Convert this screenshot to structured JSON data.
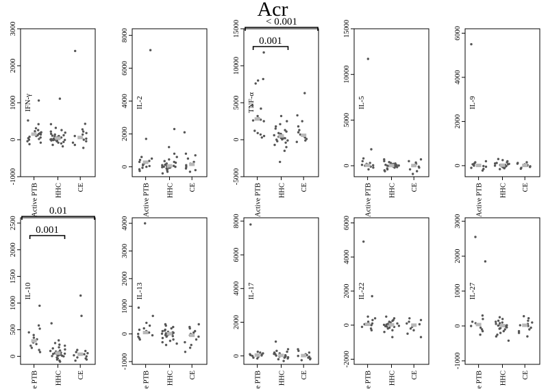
{
  "title": "Acr",
  "group_labels": [
    "Active PTB",
    "HHC",
    "CE"
  ],
  "colors": {
    "points": "#555555",
    "median": "#b8b8b8",
    "axis": "#000000"
  },
  "chart_data": [
    {
      "type": "scatter",
      "ylabel": "IFN-γ",
      "ylim": [
        -1000,
        3000
      ],
      "yticks": [
        -1000,
        0,
        1000,
        2000,
        3000
      ],
      "categories": [
        "Active PTB",
        "HHC",
        "CE"
      ],
      "series": [
        {
          "name": "Active PTB",
          "values": [
            1060,
            520,
            420,
            310,
            260,
            230,
            200,
            180,
            160,
            140,
            120,
            100,
            80,
            60,
            40,
            20,
            0,
            -40,
            -80,
            -120
          ],
          "median": 150
        },
        {
          "name": "HHC",
          "values": [
            1110,
            420,
            320,
            260,
            220,
            190,
            160,
            140,
            120,
            110,
            100,
            90,
            80,
            70,
            60,
            50,
            40,
            30,
            20,
            15,
            10,
            5,
            0,
            -5,
            -10,
            -20,
            -30,
            -40,
            -60,
            -80,
            -100,
            -140,
            -180
          ],
          "median": 40
        },
        {
          "name": "CE",
          "values": [
            2400,
            430,
            280,
            220,
            180,
            140,
            100,
            60,
            30,
            0,
            -40,
            -80,
            -140,
            -220
          ],
          "median": 60
        }
      ]
    },
    {
      "type": "scatter",
      "ylabel": "IL-2",
      "ylim": [
        -600,
        8400
      ],
      "yticks": [
        0,
        2000,
        4000,
        6000,
        8000
      ],
      "categories": [
        "Active PTB",
        "HHC",
        "CE"
      ],
      "series": [
        {
          "name": "Active PTB",
          "values": [
            7100,
            1700,
            600,
            500,
            420,
            360,
            300,
            250,
            200,
            150,
            100,
            50,
            0,
            -60,
            -150,
            -250
          ],
          "median": 280
        },
        {
          "name": "HHC",
          "values": [
            2300,
            1200,
            800,
            600,
            450,
            350,
            300,
            250,
            200,
            160,
            130,
            100,
            80,
            60,
            40,
            20,
            10,
            0,
            -20,
            -40,
            -60,
            -100,
            -150,
            -200,
            -300,
            -400
          ],
          "median": 60
        },
        {
          "name": "CE",
          "values": [
            2100,
            800,
            700,
            500,
            300,
            200,
            100,
            0,
            -100,
            -200,
            -300
          ],
          "median": 150
        }
      ]
    },
    {
      "type": "scatter",
      "ylabel": "TNF-α",
      "ylim": [
        -5000,
        15000
      ],
      "yticks": [
        -5000,
        0,
        5000,
        10000,
        15000
      ],
      "categories": [
        "Active PTB",
        "HHC",
        "CE"
      ],
      "series": [
        {
          "name": "Active PTB",
          "values": [
            11800,
            8200,
            8000,
            7600,
            4600,
            4200,
            3200,
            2900,
            2700,
            2600,
            2500,
            1200,
            900,
            700,
            500,
            300
          ],
          "median": 2800
        },
        {
          "name": "HHC",
          "values": [
            3200,
            2500,
            2100,
            1800,
            1500,
            1300,
            1100,
            900,
            800,
            700,
            600,
            500,
            400,
            300,
            250,
            200,
            150,
            100,
            50,
            0,
            -100,
            -200,
            -400,
            -700,
            -1000,
            -1500,
            -3000
          ],
          "median": 500
        },
        {
          "name": "CE",
          "values": [
            6300,
            3300,
            2500,
            1800,
            1300,
            1000,
            700,
            500,
            300,
            100,
            -100,
            -300
          ],
          "median": 600
        }
      ],
      "annotations": [
        {
          "text": "< 0.001",
          "from": "Active PTB",
          "to": "CE"
        },
        {
          "text": "0.001",
          "from": "Active PTB",
          "to": "HHC"
        }
      ]
    },
    {
      "type": "scatter",
      "ylabel": "IL-5",
      "ylim": [
        -1200,
        15000
      ],
      "yticks": [
        0,
        5000,
        10000,
        15000
      ],
      "categories": [
        "Active PTB",
        "HHC",
        "CE"
      ],
      "series": [
        {
          "name": "Active PTB",
          "values": [
            11700,
            1800,
            800,
            500,
            300,
            200,
            100,
            50,
            0,
            -100,
            -200,
            -400
          ],
          "median": 50
        },
        {
          "name": "HHC",
          "values": [
            700,
            500,
            400,
            300,
            250,
            200,
            150,
            100,
            80,
            50,
            20,
            0,
            -30,
            -60,
            -100,
            -150,
            -200,
            -300,
            -400,
            -500,
            -600
          ],
          "median": 20
        },
        {
          "name": "CE",
          "values": [
            700,
            500,
            350,
            200,
            100,
            0,
            -100,
            -200,
            -400,
            -600,
            -900
          ],
          "median": 20
        }
      ]
    },
    {
      "type": "scatter",
      "ylabel": "IL-9",
      "ylim": [
        -500,
        6200
      ],
      "yticks": [
        0,
        2000,
        4000,
        6000
      ],
      "categories": [
        "Active PTB",
        "HHC",
        "CE"
      ],
      "series": [
        {
          "name": "Active PTB",
          "values": [
            5500,
            200,
            150,
            100,
            60,
            30,
            0,
            -20,
            -50,
            -100,
            -150,
            -220
          ],
          "median": 10
        },
        {
          "name": "HHC",
          "values": [
            300,
            250,
            200,
            150,
            120,
            100,
            80,
            60,
            40,
            30,
            20,
            10,
            0,
            -10,
            -20,
            -40,
            -60,
            -80,
            -120,
            -160
          ],
          "median": 20
        },
        {
          "name": "CE",
          "values": [
            150,
            120,
            90,
            60,
            30,
            0,
            -30,
            -60,
            -100,
            -140
          ],
          "median": 10
        }
      ]
    },
    {
      "type": "scatter",
      "ylabel": "IL-10",
      "ylim": [
        -150,
        2600
      ],
      "yticks": [
        0,
        500,
        1000,
        1500,
        2000,
        2500
      ],
      "categories": [
        "Active PTB",
        "HHC",
        "CE"
      ],
      "series": [
        {
          "name": "Active PTB",
          "values": [
            950,
            580,
            520,
            450,
            400,
            350,
            320,
            290,
            260,
            230,
            200,
            160,
            120,
            80
          ],
          "median": 290
        },
        {
          "name": "HHC",
          "values": [
            620,
            300,
            250,
            220,
            200,
            170,
            150,
            130,
            110,
            100,
            90,
            80,
            70,
            60,
            50,
            45,
            40,
            35,
            30,
            25,
            20,
            15,
            10,
            5,
            0,
            -20,
            -40,
            -60,
            -80,
            -100
          ],
          "median": 60
        },
        {
          "name": "CE",
          "values": [
            1140,
            760,
            120,
            100,
            80,
            60,
            40,
            20,
            0,
            -20,
            -40,
            -60,
            -80
          ],
          "median": 40
        }
      ],
      "annotations": [
        {
          "text": "0.01",
          "from": "Active PTB",
          "to": "CE"
        },
        {
          "text": "0.001",
          "from": "Active PTB",
          "to": "HHC"
        }
      ]
    },
    {
      "type": "scatter",
      "ylabel": "IL-13",
      "ylim": [
        -1100,
        4200
      ],
      "yticks": [
        -1000,
        0,
        1000,
        2000,
        3000,
        4000
      ],
      "categories": [
        "Active PTB",
        "HHC",
        "CE"
      ],
      "series": [
        {
          "name": "Active PTB",
          "values": [
            4000,
            950,
            650,
            400,
            300,
            200,
            150,
            100,
            50,
            0,
            -50,
            -100,
            -150,
            -200
          ],
          "median": 50
        },
        {
          "name": "HHC",
          "values": [
            350,
            300,
            250,
            200,
            150,
            120,
            100,
            80,
            60,
            40,
            20,
            10,
            0,
            -10,
            -20,
            -40,
            -60,
            -80,
            -100,
            -150,
            -200,
            -250,
            -300,
            -350,
            -400
          ],
          "median": 10
        },
        {
          "name": "CE",
          "values": [
            350,
            250,
            200,
            100,
            50,
            0,
            -50,
            -100,
            -200,
            -300,
            -400,
            -500,
            -650
          ],
          "median": -50
        }
      ]
    },
    {
      "type": "scatter",
      "ylabel": "IL-17",
      "ylim": [
        -500,
        8200
      ],
      "yticks": [
        0,
        2000,
        4000,
        6000,
        8000
      ],
      "categories": [
        "Active PTB",
        "HHC",
        "CE"
      ],
      "series": [
        {
          "name": "Active PTB",
          "values": [
            7800,
            250,
            200,
            150,
            100,
            80,
            50,
            30,
            0,
            -50,
            -100,
            -150
          ],
          "median": 50
        },
        {
          "name": "HHC",
          "values": [
            850,
            400,
            300,
            250,
            200,
            150,
            120,
            100,
            80,
            60,
            40,
            20,
            0,
            -20,
            -40,
            -60,
            -80,
            -100,
            -150,
            -200,
            -300
          ],
          "median": 30
        },
        {
          "name": "CE",
          "values": [
            400,
            300,
            200,
            100,
            50,
            0,
            -50,
            -100,
            -150,
            -200,
            -250
          ],
          "median": 20
        }
      ]
    },
    {
      "type": "scatter",
      "ylabel": "IL-22",
      "ylim": [
        -2300,
        6300
      ],
      "yticks": [
        -2000,
        0,
        2000,
        4000,
        6000
      ],
      "categories": [
        "Active PTB",
        "HHC",
        "CE"
      ],
      "series": [
        {
          "name": "Active PTB",
          "values": [
            4900,
            1700,
            500,
            400,
            300,
            200,
            100,
            50,
            0,
            -100,
            -200,
            -300
          ],
          "median": 50
        },
        {
          "name": "HHC",
          "values": [
            500,
            400,
            300,
            250,
            200,
            150,
            100,
            80,
            60,
            40,
            20,
            0,
            -20,
            -40,
            -60,
            -80,
            -100,
            -150,
            -200,
            -300,
            -400,
            -700
          ],
          "median": 20
        },
        {
          "name": "CE",
          "values": [
            400,
            300,
            200,
            100,
            50,
            0,
            -100,
            -200,
            -300,
            -500,
            -700
          ],
          "median": 0
        }
      ]
    },
    {
      "type": "scatter",
      "ylabel": "IL-27",
      "ylim": [
        -1100,
        3100
      ],
      "yticks": [
        -1000,
        0,
        1000,
        2000,
        3000
      ],
      "categories": [
        "Active PTB",
        "HHC",
        "CE"
      ],
      "series": [
        {
          "name": "Active PTB",
          "values": [
            2550,
            1850,
            300,
            200,
            120,
            80,
            40,
            0,
            -50,
            -100,
            -150,
            -250
          ],
          "median": 40
        },
        {
          "name": "HHC",
          "values": [
            250,
            200,
            150,
            120,
            100,
            80,
            60,
            40,
            20,
            10,
            0,
            -20,
            -40,
            -60,
            -80,
            -100,
            -150,
            -200,
            -250,
            -300,
            -420
          ],
          "median": 10
        },
        {
          "name": "CE",
          "values": [
            280,
            220,
            150,
            100,
            60,
            20,
            0,
            -50,
            -100,
            -150,
            -200,
            -300
          ],
          "median": 20
        }
      ]
    }
  ]
}
